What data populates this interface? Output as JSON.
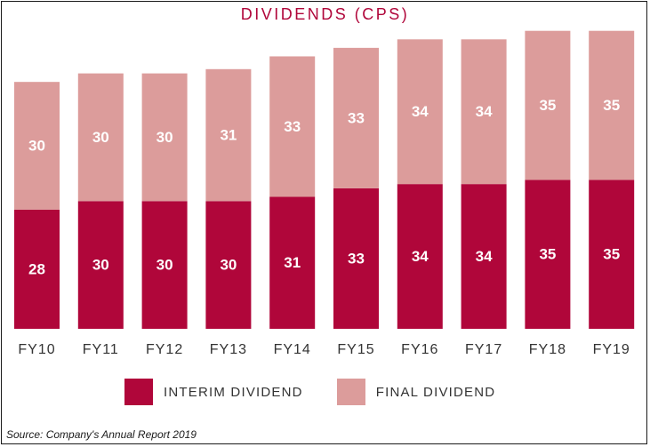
{
  "chart_data": {
    "type": "bar",
    "stacked": true,
    "title": "DIVIDENDS (CPS)",
    "categories": [
      "FY10",
      "FY11",
      "FY12",
      "FY13",
      "FY14",
      "FY15",
      "FY16",
      "FY17",
      "FY18",
      "FY19"
    ],
    "series": [
      {
        "name": "INTERIM DIVIDEND",
        "color": "#b0063a",
        "values": [
          28,
          30,
          30,
          30,
          31,
          33,
          34,
          34,
          35,
          35
        ]
      },
      {
        "name": "FINAL DIVIDEND",
        "color": "#dc9c9b",
        "values": [
          30,
          30,
          30,
          31,
          33,
          33,
          34,
          34,
          35,
          35
        ]
      }
    ],
    "grid": false,
    "legend_position": "bottom"
  },
  "source": "Source: Company's Annual Report 2019"
}
